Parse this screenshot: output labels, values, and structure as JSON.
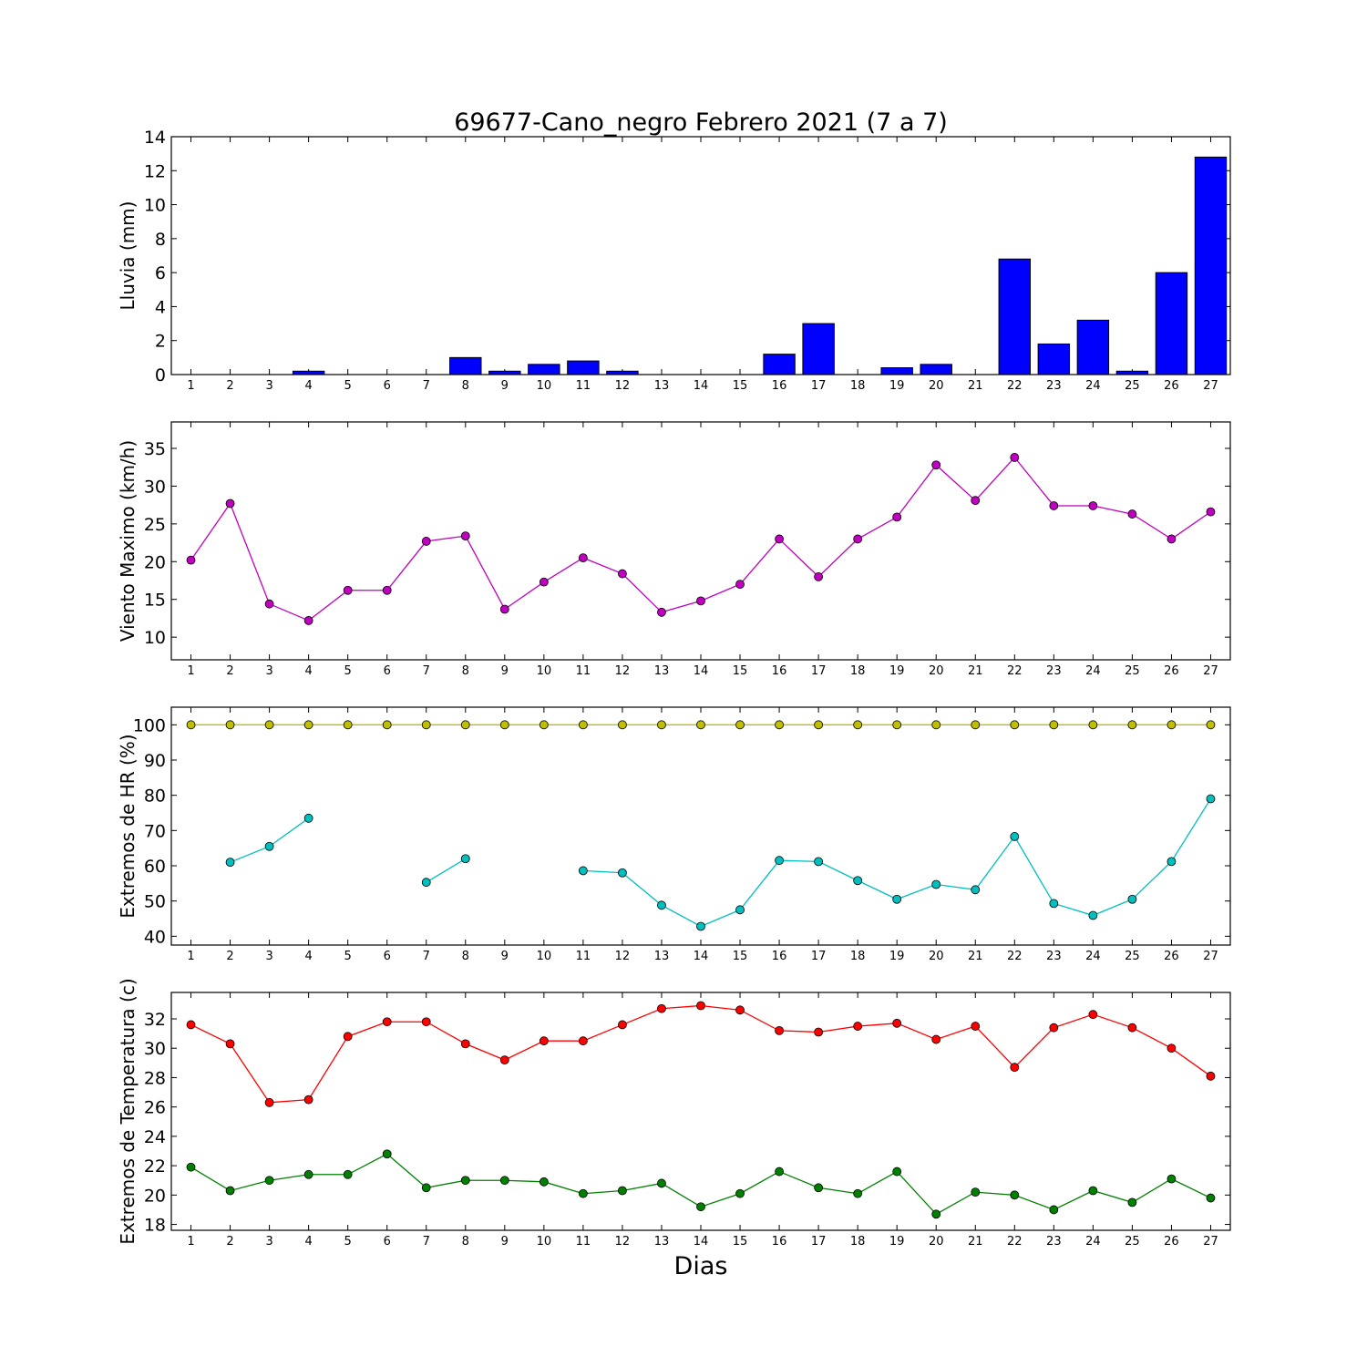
{
  "figure": {
    "title": "69677-Cano_negro Febrero 2021  (7 a 7)",
    "xlabel": "Dias"
  },
  "chart_data": [
    {
      "id": "lluvia",
      "type": "bar",
      "ylabel": "Lluvia (mm)",
      "ylim": [
        0,
        14
      ],
      "yticks": [
        0,
        2,
        4,
        6,
        8,
        10,
        12,
        14
      ],
      "xlim": [
        0.5,
        27.5
      ],
      "categories": [
        1,
        2,
        3,
        4,
        5,
        6,
        7,
        8,
        9,
        10,
        11,
        12,
        13,
        14,
        15,
        16,
        17,
        18,
        19,
        20,
        21,
        22,
        23,
        24,
        25,
        26,
        27
      ],
      "series": [
        {
          "color": "#0000ff",
          "values": [
            0,
            0,
            0,
            0.2,
            0,
            0,
            0,
            1.0,
            0.2,
            0.6,
            0.8,
            0.2,
            0,
            0,
            0,
            1.2,
            3.0,
            0,
            0.4,
            0.6,
            0,
            6.8,
            1.8,
            3.2,
            0.2,
            6.0,
            12.8
          ]
        }
      ]
    },
    {
      "id": "viento",
      "type": "line",
      "ylabel": "Viento Maximo (km/h)",
      "ylim": [
        7,
        38.5
      ],
      "yticks": [
        10,
        15,
        20,
        25,
        30,
        35
      ],
      "xlim": [
        0.5,
        27.5
      ],
      "x": [
        1,
        2,
        3,
        4,
        5,
        6,
        7,
        8,
        9,
        10,
        11,
        12,
        13,
        14,
        15,
        16,
        17,
        18,
        19,
        20,
        21,
        22,
        23,
        24,
        25,
        26,
        27
      ],
      "series": [
        {
          "color": "#bf00bf",
          "values": [
            20.2,
            27.7,
            14.4,
            12.2,
            16.2,
            16.2,
            22.7,
            23.4,
            13.7,
            17.3,
            20.5,
            18.4,
            13.3,
            14.8,
            17.0,
            23.0,
            18.0,
            23.0,
            25.9,
            32.8,
            28.1,
            33.8,
            27.4,
            27.4,
            26.3,
            23.0,
            26.6
          ]
        }
      ]
    },
    {
      "id": "hr",
      "type": "line",
      "ylabel": "Extremos de HR (%)",
      "ylim": [
        37.5,
        105
      ],
      "yticks": [
        40,
        50,
        60,
        70,
        80,
        90,
        100
      ],
      "xlim": [
        0.5,
        27.5
      ],
      "x": [
        1,
        2,
        3,
        4,
        5,
        6,
        7,
        8,
        9,
        10,
        11,
        12,
        13,
        14,
        15,
        16,
        17,
        18,
        19,
        20,
        21,
        22,
        23,
        24,
        25,
        26,
        27
      ],
      "series": [
        {
          "color": "#bfbf00",
          "values": [
            100,
            100,
            100,
            100,
            100,
            100,
            100,
            100,
            100,
            100,
            100,
            100,
            100,
            100,
            100,
            100,
            100,
            100,
            100,
            100,
            100,
            100,
            100,
            100,
            100,
            100,
            100
          ]
        },
        {
          "color": "#00bfbf",
          "values": [
            null,
            61.0,
            65.5,
            73.5,
            null,
            null,
            55.3,
            62.0,
            null,
            null,
            58.6,
            58.0,
            48.8,
            42.8,
            47.5,
            61.5,
            61.2,
            55.8,
            50.5,
            54.7,
            53.2,
            68.3,
            49.3,
            45.9,
            50.5,
            61.2,
            79.0
          ]
        }
      ]
    },
    {
      "id": "temperatura",
      "type": "line",
      "ylabel": "Extremos de Temperatura (c)",
      "ylim": [
        17.6,
        33.8
      ],
      "yticks": [
        18,
        20,
        22,
        24,
        26,
        28,
        30,
        32
      ],
      "xlim": [
        0.5,
        27.5
      ],
      "x": [
        1,
        2,
        3,
        4,
        5,
        6,
        7,
        8,
        9,
        10,
        11,
        12,
        13,
        14,
        15,
        16,
        17,
        18,
        19,
        20,
        21,
        22,
        23,
        24,
        25,
        26,
        27
      ],
      "series": [
        {
          "color": "#ff0000",
          "values": [
            31.6,
            30.3,
            26.3,
            26.5,
            30.8,
            31.8,
            31.8,
            30.3,
            29.2,
            30.5,
            30.5,
            31.6,
            32.7,
            32.9,
            32.6,
            31.2,
            31.1,
            31.5,
            31.7,
            30.6,
            31.5,
            28.7,
            31.4,
            32.3,
            31.4,
            30.0,
            28.1
          ]
        },
        {
          "color": "#008000",
          "values": [
            21.9,
            20.3,
            21.0,
            21.4,
            21.4,
            22.8,
            20.5,
            21.0,
            21.0,
            20.9,
            20.1,
            20.3,
            20.8,
            19.2,
            20.1,
            21.6,
            20.5,
            20.1,
            21.6,
            18.7,
            20.2,
            20.0,
            19.0,
            20.3,
            19.5,
            21.1,
            19.8
          ]
        }
      ]
    }
  ]
}
